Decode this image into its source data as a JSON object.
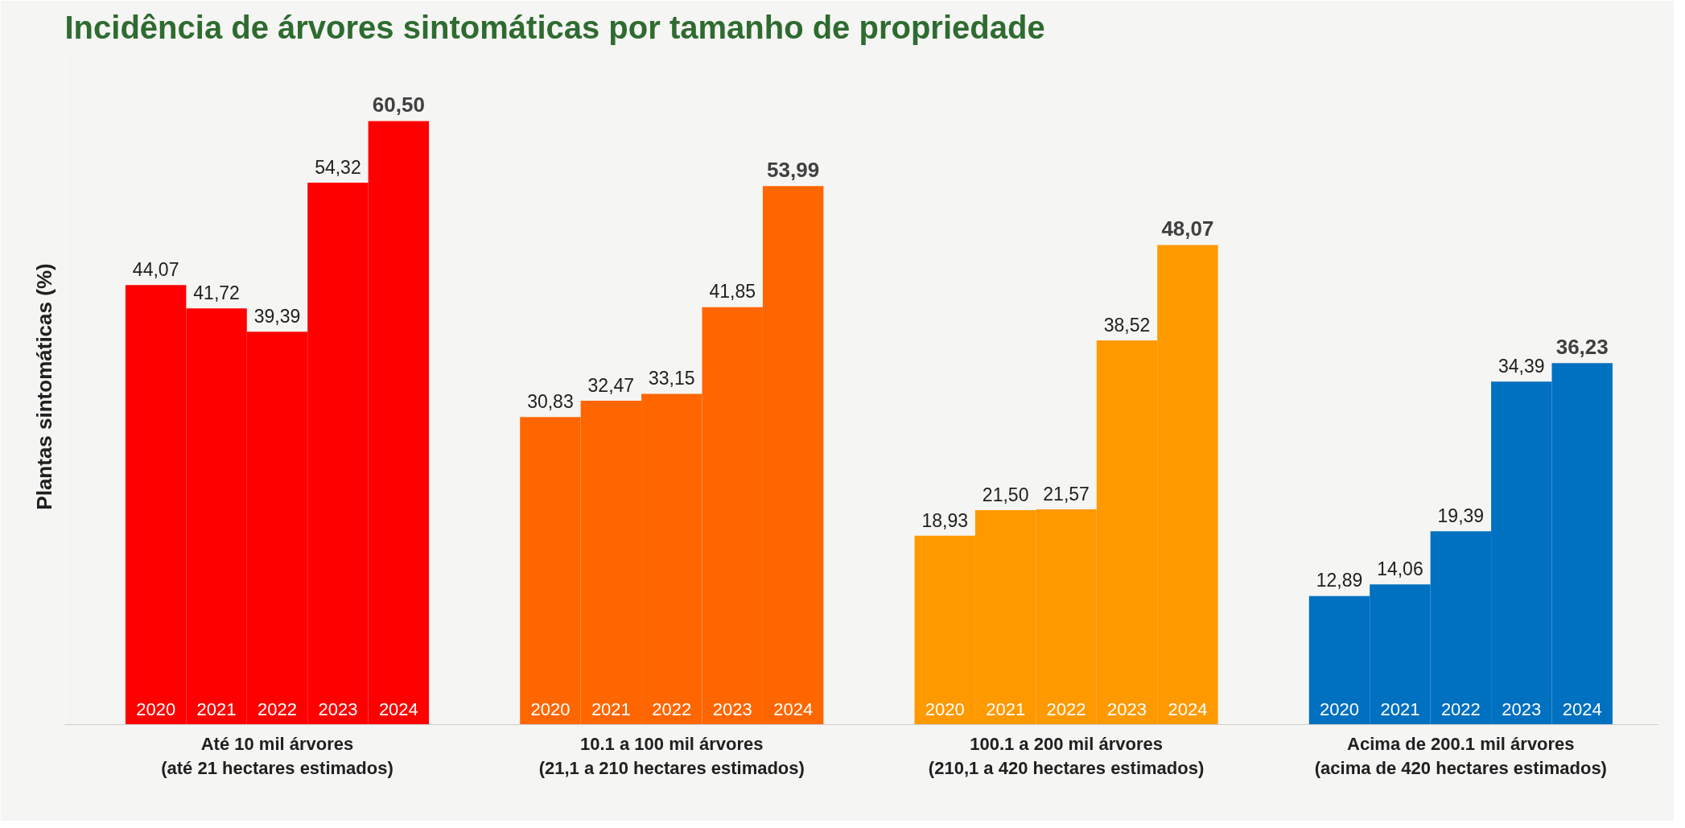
{
  "chart_data": {
    "type": "bar",
    "title": "Incidência de árvores sintomáticas por tamanho de propriedade",
    "ylabel": "Plantas sintomáticas (%)",
    "categories": [
      "Até 10 mil árvores\n(até 21 hectares estimados)",
      "10.1 a 100 mil árvores\n(21,1 a 210 hectares estimados)",
      "100.1 a 200 mil árvores\n(210,1 a 420 hectares estimados)",
      "Acima de 200.1 mil árvores\n(acima de 420 hectares estimados)"
    ],
    "series": [
      {
        "name": "2020",
        "colors": [
          "#ff0000",
          "#ff6600",
          "#ff9900",
          "#0070c0"
        ],
        "values": [
          44.07,
          30.83,
          18.93,
          12.89
        ],
        "value_labels": [
          "44,07",
          "30,83",
          "18,93",
          "12,89"
        ]
      },
      {
        "name": "2021",
        "colors": [
          "#ff0000",
          "#ff6600",
          "#ff9900",
          "#0070c0"
        ],
        "values": [
          41.72,
          32.47,
          21.5,
          14.06
        ],
        "value_labels": [
          "41,72",
          "32,47",
          "21,50",
          "14,06"
        ]
      },
      {
        "name": "2022",
        "colors": [
          "#ff0000",
          "#ff6600",
          "#ff9900",
          "#0070c0"
        ],
        "values": [
          39.39,
          33.15,
          21.57,
          19.39
        ],
        "value_labels": [
          "39,39",
          "33,15",
          "21,57",
          "19,39"
        ]
      },
      {
        "name": "2023",
        "colors": [
          "#ff0000",
          "#ff6600",
          "#ff9900",
          "#0070c0"
        ],
        "values": [
          54.32,
          41.85,
          38.52,
          34.39
        ],
        "value_labels": [
          "54,32",
          "41,85",
          "38,52",
          "34,39"
        ]
      },
      {
        "name": "2024",
        "colors": [
          "#ff0000",
          "#ff6600",
          "#ff9900",
          "#0070c0"
        ],
        "values": [
          60.5,
          53.99,
          48.07,
          36.23
        ],
        "value_labels": [
          "60,50",
          "53,99",
          "48,07",
          "36,23"
        ]
      }
    ],
    "grid": false,
    "tick_labels": "x"
  }
}
